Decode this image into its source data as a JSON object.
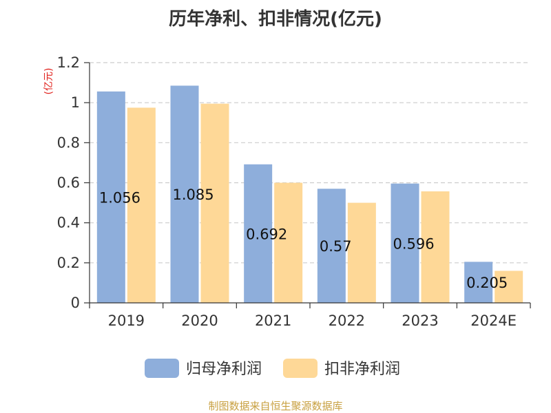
{
  "chart_data": {
    "type": "bar",
    "title": "历年净利、扣非情况(亿元)",
    "unit_label": "(亿元)",
    "categories": [
      "2019",
      "2020",
      "2021",
      "2022",
      "2023",
      "2024E"
    ],
    "series": [
      {
        "name": "归母净利润",
        "color": "#8eaedb",
        "values": [
          1.056,
          1.085,
          0.692,
          0.57,
          0.596,
          0.205
        ],
        "labels": [
          "1.056",
          "1.085",
          "0.692",
          "0.57",
          "0.596",
          "0.205"
        ]
      },
      {
        "name": "扣非净利润",
        "color": "#fed897",
        "values": [
          0.975,
          0.995,
          0.6,
          0.5,
          0.557,
          0.16
        ]
      }
    ],
    "ylim": [
      0,
      1.2
    ],
    "yticks": [
      {
        "value": 0,
        "label": "0"
      },
      {
        "value": 0.2,
        "label": "0.2"
      },
      {
        "value": 0.4,
        "label": "0.4"
      },
      {
        "value": 0.6,
        "label": "0.6"
      },
      {
        "value": 0.8,
        "label": "0.8"
      },
      {
        "value": 1,
        "label": "1"
      },
      {
        "value": 1.2,
        "label": "1.2"
      }
    ],
    "grid": true,
    "legend_position": "bottom-center"
  },
  "source": "制图数据来自恒生聚源数据库"
}
